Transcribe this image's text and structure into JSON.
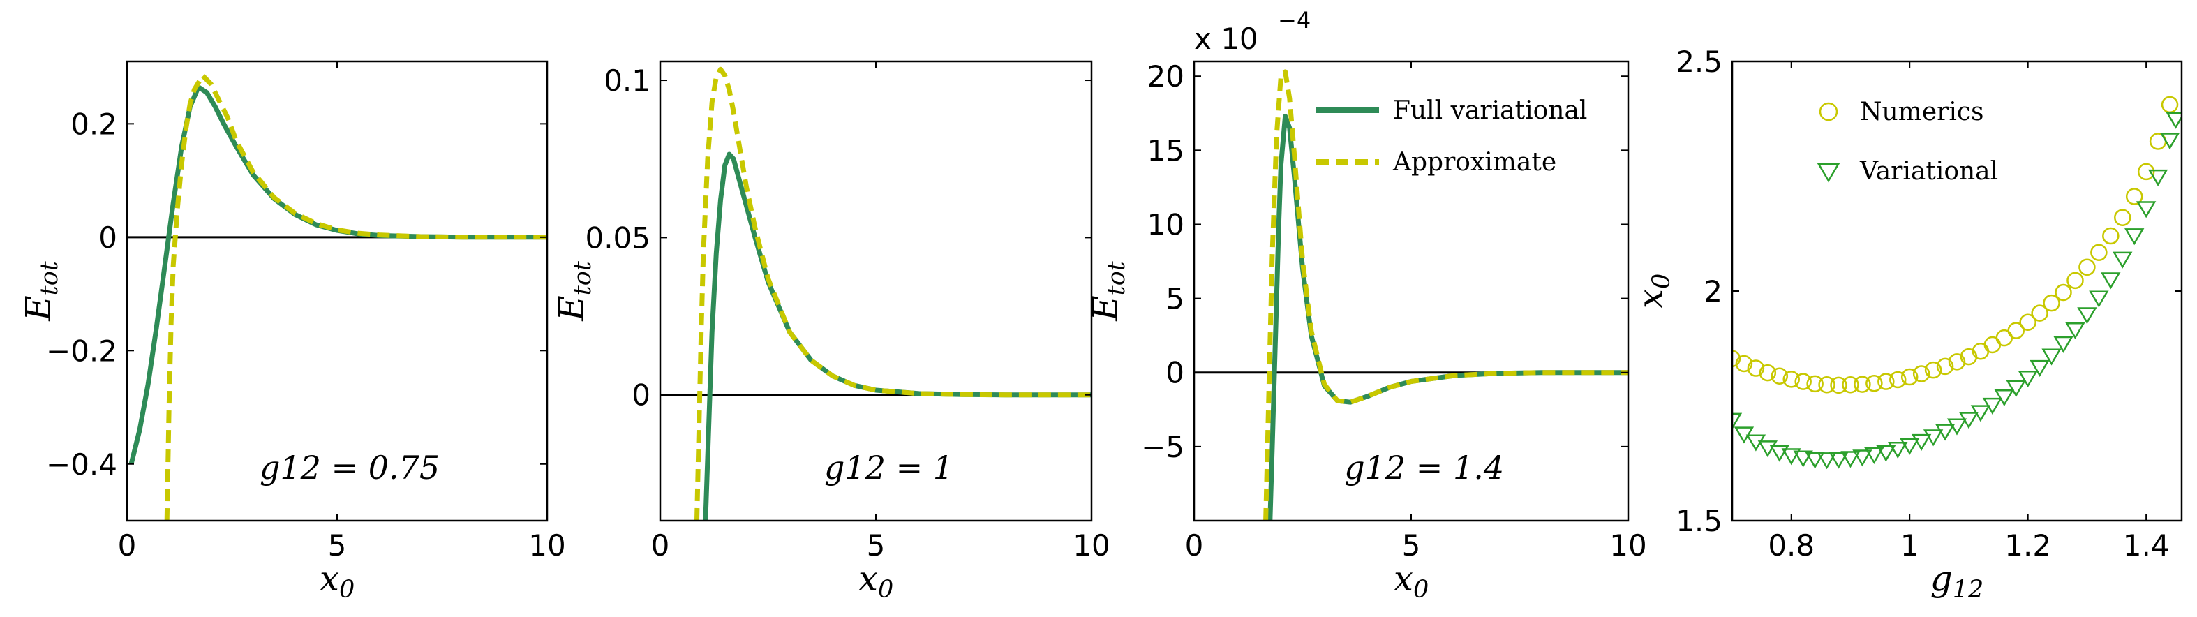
{
  "chart_data": [
    {
      "type": "line",
      "xlabel": "x0",
      "ylabel": "Etot",
      "xlim": [
        0,
        10
      ],
      "ylim": [
        -0.5,
        0.31
      ],
      "xticks": [
        "0",
        "5",
        "10"
      ],
      "yticks": [
        "−0.4",
        "−0.2",
        "0",
        "0.2"
      ],
      "annotation": "g12 = 0.75",
      "series": [
        {
          "color": "#2e8b57",
          "style": "solid",
          "x": [
            0.1,
            0.3,
            0.5,
            0.7,
            0.9,
            1.1,
            1.3,
            1.5,
            1.7,
            1.9,
            2.1,
            2.3,
            2.6,
            3.0,
            3.5,
            4.0,
            4.5,
            5.0,
            5.5,
            6.0,
            7.0,
            8.0,
            10.0
          ],
          "y": [
            -0.4,
            -0.34,
            -0.26,
            -0.16,
            -0.05,
            0.06,
            0.16,
            0.23,
            0.265,
            0.255,
            0.23,
            0.2,
            0.16,
            0.11,
            0.068,
            0.04,
            0.022,
            0.012,
            0.006,
            0.003,
            0.001,
            0.0,
            0.0
          ]
        },
        {
          "color": "#c8c800",
          "style": "dashed",
          "x": [
            0.95,
            1.0,
            1.05,
            1.1,
            1.2,
            1.3,
            1.4,
            1.5,
            1.6,
            1.8,
            2.0,
            2.2,
            2.4,
            2.6,
            3.0,
            3.5,
            4.0,
            4.5,
            5.0,
            5.5,
            6.0,
            7.0,
            8.0,
            10.0
          ],
          "y": [
            -0.5,
            -0.3,
            -0.15,
            -0.05,
            0.05,
            0.13,
            0.19,
            0.235,
            0.26,
            0.285,
            0.27,
            0.24,
            0.21,
            0.17,
            0.115,
            0.07,
            0.042,
            0.024,
            0.013,
            0.007,
            0.004,
            0.001,
            0.0,
            0.0
          ]
        }
      ]
    },
    {
      "type": "line",
      "xlabel": "x0",
      "ylabel": "Etot",
      "xlim": [
        0,
        10
      ],
      "ylim": [
        -0.04,
        0.106
      ],
      "xticks": [
        "0",
        "5",
        "10"
      ],
      "yticks": [
        "0",
        "0.05",
        "0.1"
      ],
      "annotation": "g12 = 1",
      "series": [
        {
          "color": "#2e8b57",
          "style": "solid",
          "x": [
            1.05,
            1.1,
            1.15,
            1.2,
            1.3,
            1.4,
            1.5,
            1.6,
            1.7,
            1.8,
            2.0,
            2.2,
            2.5,
            3.0,
            3.5,
            4.0,
            4.5,
            5.0,
            6.0,
            7.0,
            8.0,
            10.0
          ],
          "y": [
            -0.04,
            -0.02,
            0.0,
            0.02,
            0.045,
            0.062,
            0.073,
            0.0765,
            0.075,
            0.07,
            0.06,
            0.05,
            0.036,
            0.02,
            0.011,
            0.006,
            0.003,
            0.0015,
            0.0004,
            0.0001,
            0.0,
            0.0
          ]
        },
        {
          "color": "#c8c800",
          "style": "dashed",
          "x": [
            0.85,
            0.9,
            0.95,
            1.0,
            1.1,
            1.2,
            1.3,
            1.4,
            1.5,
            1.6,
            1.7,
            1.8,
            2.0,
            2.2,
            2.5,
            3.0,
            3.5,
            4.0,
            4.5,
            5.0,
            6.0,
            7.0,
            8.0,
            10.0
          ],
          "y": [
            -0.04,
            -0.01,
            0.02,
            0.045,
            0.075,
            0.093,
            0.101,
            0.1035,
            0.1015,
            0.097,
            0.09,
            0.082,
            0.066,
            0.053,
            0.037,
            0.02,
            0.011,
            0.006,
            0.003,
            0.0015,
            0.0004,
            0.0001,
            0.0,
            0.0
          ]
        }
      ]
    },
    {
      "type": "line",
      "xlabel": "x0",
      "ylabel": "Etot",
      "xlim": [
        0,
        10
      ],
      "ylim": [
        -10,
        21
      ],
      "xticks": [
        "0",
        "5",
        "10"
      ],
      "yticks": [
        "−5",
        "0",
        "5",
        "10",
        "15",
        "20"
      ],
      "scale_label": "x 10",
      "scale_exponent": "−4",
      "annotation": "g12 = 1.4",
      "legend": [
        "Full variational",
        "Approximate"
      ],
      "series": [
        {
          "name": "Full variational",
          "color": "#2e8b57",
          "style": "solid",
          "x": [
            1.75,
            1.8,
            1.85,
            1.9,
            1.95,
            2.0,
            2.1,
            2.2,
            2.3,
            2.5,
            2.7,
            3.0,
            3.3,
            3.6,
            4.0,
            4.5,
            5.0,
            6.0,
            7.0,
            8.0,
            10.0
          ],
          "y": [
            -10,
            -5,
            0,
            5,
            10,
            14,
            17.3,
            16.5,
            13.5,
            7.0,
            2.5,
            -0.9,
            -1.9,
            -2.0,
            -1.6,
            -1.0,
            -0.6,
            -0.2,
            -0.05,
            0.0,
            0.0
          ]
        },
        {
          "name": "Approximate",
          "color": "#c8c800",
          "style": "dashed",
          "x": [
            1.65,
            1.7,
            1.75,
            1.8,
            1.9,
            2.0,
            2.1,
            2.2,
            2.3,
            2.5,
            2.7,
            3.0,
            3.3,
            3.6,
            4.0,
            4.5,
            5.0,
            6.0,
            7.0,
            8.0,
            10.0
          ],
          "y": [
            -10,
            -4,
            2,
            8,
            16,
            20,
            20.3,
            18.5,
            15,
            7.5,
            2.8,
            -0.8,
            -1.9,
            -2.0,
            -1.6,
            -1.0,
            -0.6,
            -0.2,
            -0.05,
            0.0,
            0.0
          ]
        }
      ]
    },
    {
      "type": "scatter",
      "xlabel": "g12",
      "ylabel": "x0",
      "xlim": [
        0.7,
        1.46
      ],
      "ylim": [
        1.5,
        2.5
      ],
      "xticks": [
        "0.8",
        "1",
        "1.2",
        "1.4"
      ],
      "yticks": [
        "1.5",
        "2",
        "2.5"
      ],
      "legend": [
        "Numerics",
        "Variational"
      ],
      "series": [
        {
          "name": "Numerics",
          "marker": "circle",
          "color": "#c8c800",
          "x": [
            0.7,
            0.72,
            0.74,
            0.76,
            0.78,
            0.8,
            0.82,
            0.84,
            0.86,
            0.88,
            0.9,
            0.92,
            0.94,
            0.96,
            0.98,
            1.0,
            1.02,
            1.04,
            1.06,
            1.08,
            1.1,
            1.12,
            1.14,
            1.16,
            1.18,
            1.2,
            1.22,
            1.24,
            1.26,
            1.28,
            1.3,
            1.32,
            1.34,
            1.36,
            1.38,
            1.4,
            1.42,
            1.44
          ],
          "y": [
            1.853,
            1.842,
            1.832,
            1.822,
            1.815,
            1.808,
            1.803,
            1.798,
            1.796,
            1.795,
            1.796,
            1.797,
            1.799,
            1.803,
            1.807,
            1.813,
            1.82,
            1.828,
            1.836,
            1.846,
            1.857,
            1.869,
            1.883,
            1.898,
            1.914,
            1.932,
            1.952,
            1.974,
            1.997,
            2.023,
            2.052,
            2.084,
            2.12,
            2.16,
            2.206,
            2.26,
            2.326,
            2.406
          ]
        },
        {
          "name": "Variational",
          "marker": "triangle-down",
          "color": "#2ca02c",
          "x": [
            0.7,
            0.72,
            0.74,
            0.76,
            0.78,
            0.8,
            0.82,
            0.84,
            0.86,
            0.88,
            0.9,
            0.92,
            0.94,
            0.96,
            0.98,
            1.0,
            1.02,
            1.04,
            1.06,
            1.08,
            1.1,
            1.12,
            1.14,
            1.16,
            1.18,
            1.2,
            1.22,
            1.24,
            1.26,
            1.28,
            1.3,
            1.32,
            1.34,
            1.36,
            1.38,
            1.4,
            1.42,
            1.44,
            1.45
          ],
          "y": [
            1.72,
            1.69,
            1.673,
            1.66,
            1.65,
            1.643,
            1.638,
            1.635,
            1.634,
            1.635,
            1.637,
            1.64,
            1.645,
            1.65,
            1.657,
            1.665,
            1.674,
            1.684,
            1.696,
            1.708,
            1.722,
            1.737,
            1.753,
            1.771,
            1.791,
            1.812,
            1.835,
            1.86,
            1.887,
            1.917,
            1.95,
            1.986,
            2.026,
            2.071,
            2.122,
            2.181,
            2.25,
            2.33,
            2.375
          ]
        }
      ]
    }
  ]
}
